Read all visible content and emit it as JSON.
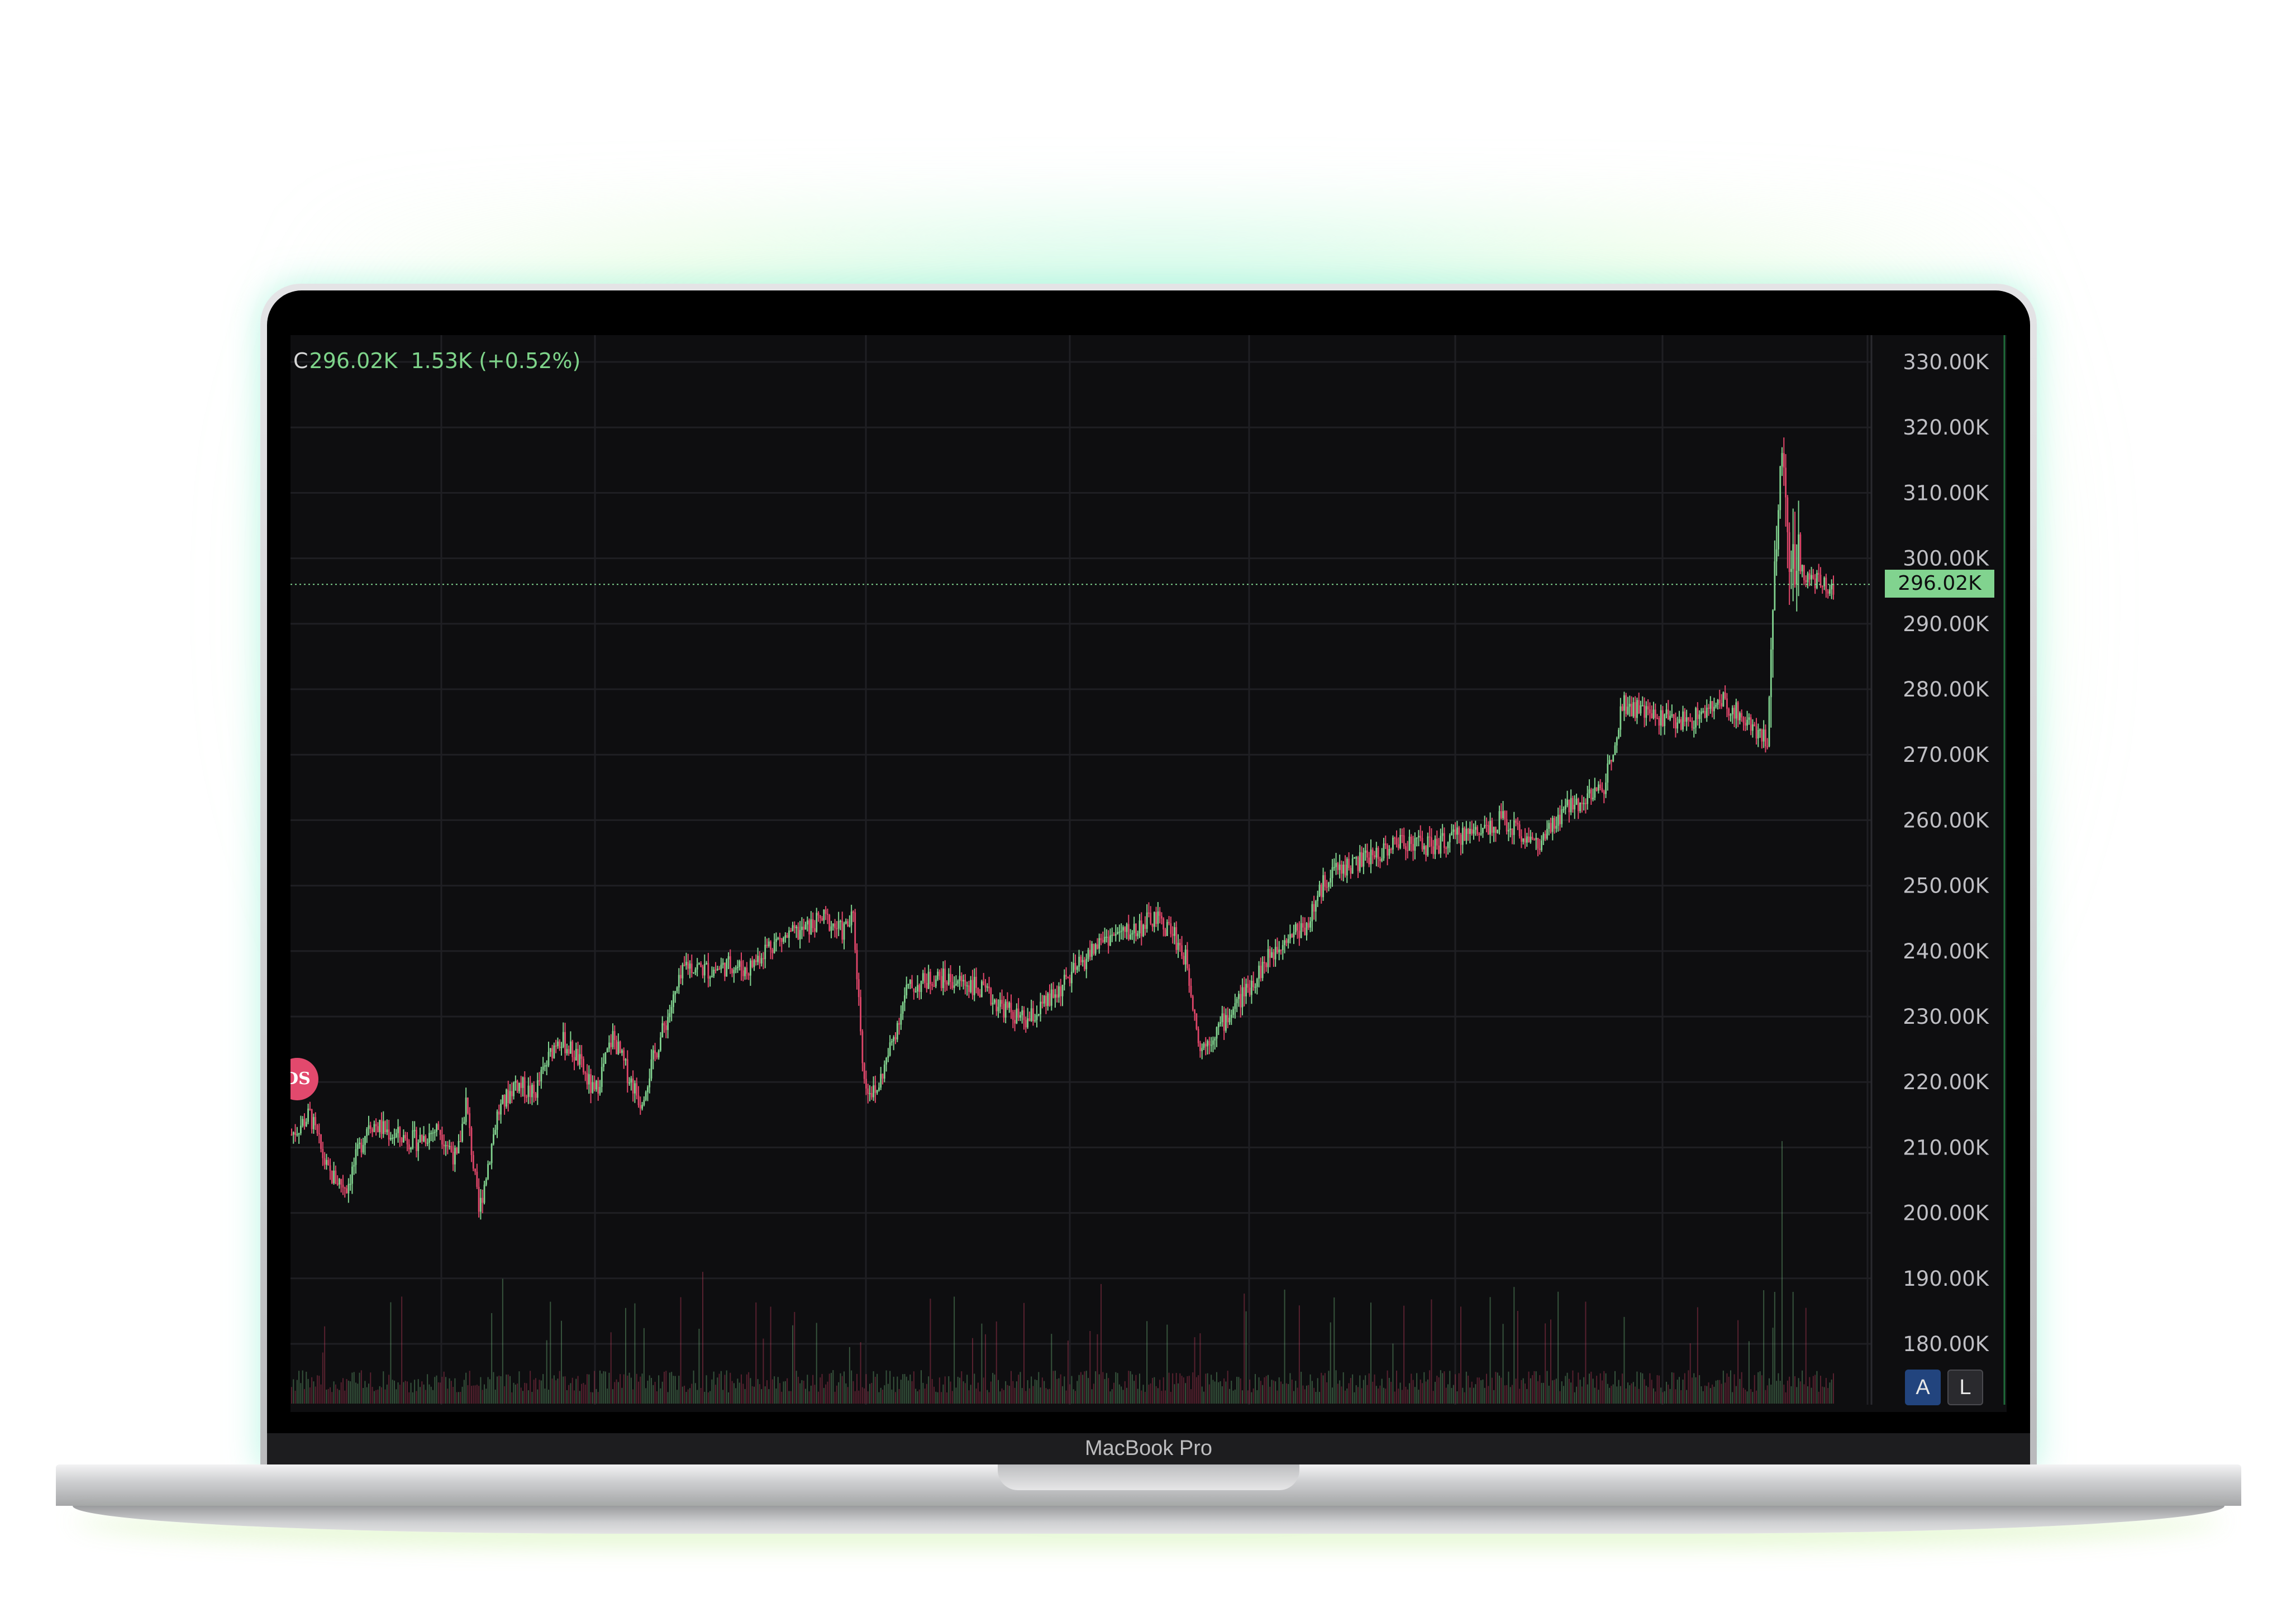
{
  "device": {
    "label": "MacBook Pro"
  },
  "legend": {
    "prefix": "C",
    "close": "296.02K",
    "change": "1.53K",
    "change_pct": "(+0.52%)",
    "color": "#7ed48a"
  },
  "price_axis": {
    "ticks": [
      "330.00K",
      "320.00K",
      "310.00K",
      "300.00K",
      "290.00K",
      "280.00K",
      "270.00K",
      "260.00K",
      "250.00K",
      "240.00K",
      "230.00K",
      "220.00K",
      "210.00K",
      "200.00K",
      "190.00K",
      "180.00K"
    ],
    "last_price_label": "296.02K"
  },
  "event_badge": {
    "text": "DS",
    "color": "#e2496d"
  },
  "scale_buttons": {
    "auto": "A",
    "log": "L"
  },
  "colors": {
    "up": "#81d38f",
    "down": "#e0466a",
    "background": "#0e0e10",
    "grid": "#1f1f23"
  },
  "chart_data": {
    "type": "candlestick",
    "y_unit": "K",
    "ylim": [
      175,
      332
    ],
    "last_price": 296.02,
    "grid": true,
    "close_path": [
      [
        0,
        212
      ],
      [
        10,
        215
      ],
      [
        20,
        206
      ],
      [
        30,
        204
      ],
      [
        42,
        214
      ],
      [
        55,
        212
      ],
      [
        68,
        211
      ],
      [
        80,
        213
      ],
      [
        90,
        208
      ],
      [
        95,
        217
      ],
      [
        102,
        200
      ],
      [
        112,
        215
      ],
      [
        122,
        220
      ],
      [
        132,
        218
      ],
      [
        145,
        227
      ],
      [
        155,
        224
      ],
      [
        165,
        218
      ],
      [
        175,
        227
      ],
      [
        182,
        222
      ],
      [
        190,
        217
      ],
      [
        200,
        226
      ],
      [
        215,
        238
      ],
      [
        228,
        237
      ],
      [
        240,
        238
      ],
      [
        248,
        237
      ],
      [
        260,
        241
      ],
      [
        278,
        243
      ],
      [
        290,
        245
      ],
      [
        300,
        243
      ],
      [
        306,
        245
      ],
      [
        312,
        220
      ],
      [
        318,
        218
      ],
      [
        325,
        224
      ],
      [
        335,
        234
      ],
      [
        350,
        236
      ],
      [
        370,
        235
      ],
      [
        385,
        232
      ],
      [
        400,
        229
      ],
      [
        415,
        233
      ],
      [
        430,
        238
      ],
      [
        442,
        242
      ],
      [
        458,
        243
      ],
      [
        470,
        245
      ],
      [
        480,
        243
      ],
      [
        488,
        238
      ],
      [
        495,
        225
      ],
      [
        510,
        230
      ],
      [
        525,
        236
      ],
      [
        540,
        242
      ],
      [
        553,
        244
      ],
      [
        565,
        252
      ],
      [
        585,
        254
      ],
      [
        605,
        257
      ],
      [
        622,
        256
      ],
      [
        640,
        258
      ],
      [
        660,
        260
      ],
      [
        680,
        256
      ],
      [
        695,
        262
      ],
      [
        715,
        265
      ],
      [
        725,
        278
      ],
      [
        740,
        276
      ],
      [
        760,
        275
      ],
      [
        780,
        278
      ],
      [
        798,
        274
      ],
      [
        804,
        272
      ],
      [
        808,
        300
      ],
      [
        812,
        316
      ],
      [
        816,
        300
      ],
      [
        822,
        298
      ],
      [
        832,
        296
      ],
      [
        840,
        296.02
      ]
    ],
    "volume_max_spike_at": [
      812,
      210
    ]
  }
}
